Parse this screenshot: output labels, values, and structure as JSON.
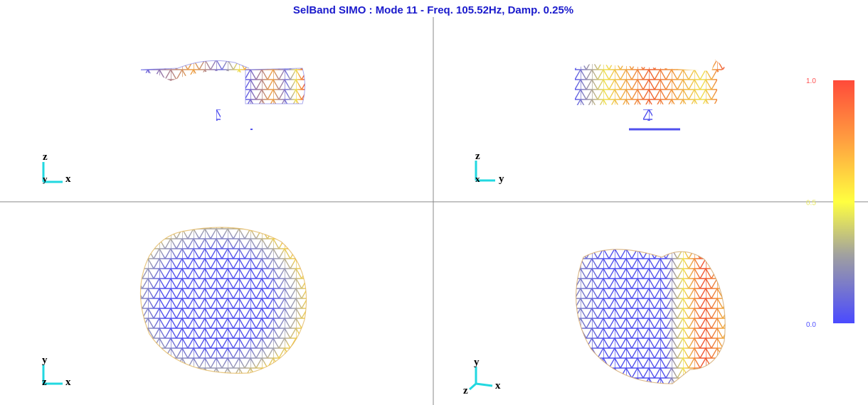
{
  "title": "SelBand SIMO : Mode 11 - Freq. 105.52Hz, Damp.  0.25%",
  "views": [
    {
      "up": "z",
      "out": "y",
      "right": "x"
    },
    {
      "up": "z",
      "out": "x",
      "right": "y"
    },
    {
      "up": "y",
      "out": "z",
      "right": "x"
    },
    {
      "up": "y",
      "out": "z",
      "right": "x"
    }
  ],
  "colorbar": {
    "ticks": [
      {
        "value": 1,
        "label": "1.0"
      },
      {
        "value": 0.5,
        "label": "0.5"
      },
      {
        "value": 0,
        "label": "0.0"
      }
    ]
  }
}
